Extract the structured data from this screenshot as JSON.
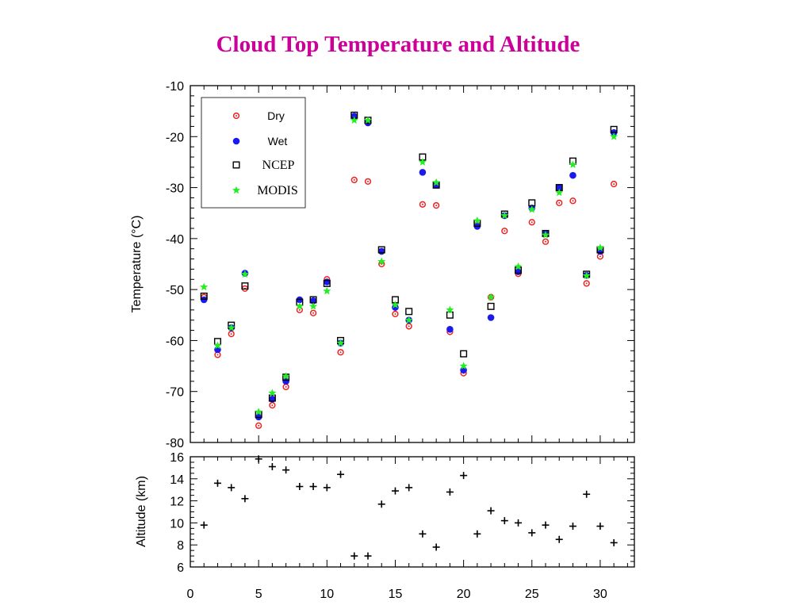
{
  "title": "Cloud Top Temperature and Altitude",
  "chart_data": [
    {
      "type": "scatter",
      "ylabel": "Temperature (°C)",
      "xlim": [
        0,
        32.5
      ],
      "ylim": [
        -80,
        -10
      ],
      "yticks": [
        -10,
        -20,
        -30,
        -40,
        -50,
        -60,
        -70,
        -80
      ],
      "legend_position": "top-left",
      "x": [
        1,
        2,
        3,
        4,
        5,
        6,
        7,
        8,
        9,
        10,
        11,
        12,
        13,
        14,
        15,
        16,
        17,
        18,
        19,
        20,
        21,
        22,
        23,
        24,
        25,
        26,
        27,
        28,
        29,
        30,
        31
      ],
      "series": [
        {
          "name": "Dry",
          "marker": "circle-dot",
          "color": "#ee2222",
          "values": [
            -51.5,
            -62.8,
            -58.7,
            -49.8,
            -76.7,
            -72.7,
            -69.1,
            -54.0,
            -54.6,
            -48.0,
            -62.3,
            -28.5,
            -28.8,
            -45.0,
            -54.8,
            -57.2,
            -33.3,
            -33.5,
            -58.3,
            -66.4,
            -37.3,
            -51.5,
            -38.5,
            -46.9,
            -36.8,
            -40.6,
            -33.0,
            -32.6,
            -48.8,
            -43.5,
            -29.3
          ]
        },
        {
          "name": "Wet",
          "marker": "filled-circle",
          "color": "#1a1aee",
          "values": [
            -52.0,
            -61.8,
            -57.5,
            -46.8,
            -75.0,
            -71.5,
            -68.0,
            -52.0,
            -52.2,
            -48.5,
            -60.5,
            -16.0,
            -17.3,
            -42.5,
            -53.5,
            -56.0,
            -27.0,
            -29.5,
            -57.8,
            -65.8,
            -37.6,
            -55.5,
            -35.5,
            -46.5,
            -34.0,
            -39.0,
            -30.0,
            -27.6,
            -47.2,
            -42.5,
            -19.2
          ]
        },
        {
          "name": "NCEP",
          "marker": "open-square",
          "color": "#000000",
          "values": [
            -51.3,
            -60.2,
            -57.0,
            -49.3,
            -74.5,
            -71.3,
            -67.2,
            -52.5,
            -52.0,
            -48.8,
            -60.0,
            -15.8,
            -16.8,
            -42.2,
            -52.0,
            -54.3,
            -24.0,
            -29.5,
            -55.0,
            -62.6,
            -37.0,
            -53.3,
            -35.2,
            -46.2,
            -33.0,
            -39.0,
            -30.0,
            -24.8,
            -47.0,
            -42.2,
            -18.6
          ]
        },
        {
          "name": "MODIS",
          "marker": "star",
          "color": "#22ee22",
          "values": [
            -49.5,
            -61.0,
            -57.5,
            -47.0,
            -74.0,
            -70.3,
            -67.0,
            -53.3,
            -53.3,
            -50.3,
            -60.5,
            -16.8,
            -16.8,
            -44.5,
            -53.0,
            -56.0,
            -25.0,
            -29.0,
            -54.0,
            -65.0,
            -36.5,
            -51.5,
            -35.5,
            -45.5,
            -34.3,
            -39.3,
            -31.0,
            -25.5,
            -47.3,
            -41.8,
            -20.0
          ]
        }
      ]
    },
    {
      "type": "scatter",
      "xlabel": "",
      "ylabel": "Altitude (km)",
      "xlim": [
        0,
        32.5
      ],
      "ylim": [
        6,
        16
      ],
      "xticks": [
        0,
        5,
        10,
        15,
        20,
        25,
        30
      ],
      "yticks": [
        16,
        14,
        12,
        10,
        8,
        6
      ],
      "x": [
        1,
        2,
        3,
        4,
        5,
        6,
        7,
        8,
        9,
        10,
        11,
        12,
        13,
        14,
        15,
        16,
        17,
        18,
        19,
        20,
        21,
        22,
        23,
        24,
        25,
        26,
        27,
        28,
        29,
        30,
        31
      ],
      "series": [
        {
          "marker": "plus",
          "color": "#000000",
          "values": [
            9.8,
            13.6,
            13.2,
            12.2,
            15.8,
            15.1,
            14.8,
            13.3,
            13.3,
            13.2,
            14.4,
            7.0,
            7.0,
            11.7,
            12.9,
            13.2,
            9.0,
            7.8,
            12.8,
            14.3,
            9.0,
            11.1,
            10.2,
            10.0,
            9.1,
            9.8,
            8.5,
            9.7,
            12.6,
            9.7,
            8.2
          ]
        }
      ]
    }
  ]
}
